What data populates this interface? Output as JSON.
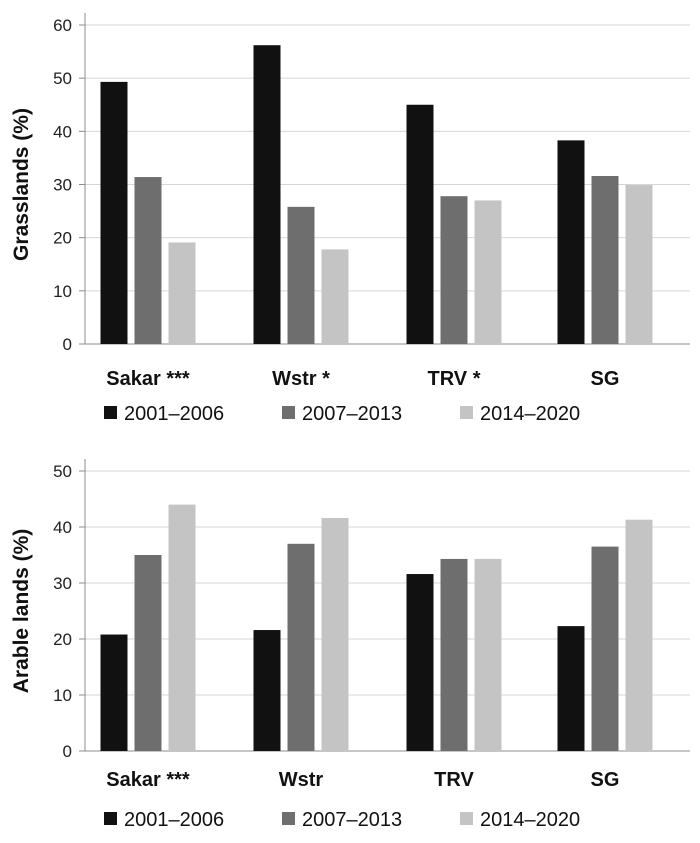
{
  "chart_data": [
    {
      "type": "bar",
      "ylabel": "Grasslands (%)",
      "ylim": [
        0,
        60
      ],
      "yticks": [
        0,
        10,
        20,
        30,
        40,
        50,
        60
      ],
      "grid": true,
      "legend": "bottom",
      "categories": [
        "Sakar ***",
        "Wstr *",
        "TRV *",
        "SG"
      ],
      "series": [
        {
          "name": "2001–2006",
          "color": "#111111",
          "values": [
            49.3,
            56.2,
            45.0,
            38.3
          ]
        },
        {
          "name": "2007–2013",
          "color": "#6e6e6e",
          "values": [
            31.4,
            25.8,
            27.8,
            31.6
          ]
        },
        {
          "name": "2014–2020",
          "color": "#c4c4c4",
          "values": [
            19.1,
            17.8,
            27.0,
            29.9
          ]
        }
      ]
    },
    {
      "type": "bar",
      "ylabel": "Arable lands (%)",
      "ylim": [
        0,
        50
      ],
      "yticks": [
        0,
        10,
        20,
        30,
        40,
        50
      ],
      "grid": true,
      "legend": "bottom",
      "categories": [
        "Sakar ***",
        "Wstr",
        "TRV",
        "SG"
      ],
      "series": [
        {
          "name": "2001–2006",
          "color": "#111111",
          "values": [
            20.8,
            21.6,
            31.6,
            22.3
          ]
        },
        {
          "name": "2007–2013",
          "color": "#6e6e6e",
          "values": [
            35.0,
            37.0,
            34.3,
            36.5
          ]
        },
        {
          "name": "2014–2020",
          "color": "#c4c4c4",
          "values": [
            44.0,
            41.6,
            34.3,
            41.3
          ]
        }
      ]
    }
  ]
}
